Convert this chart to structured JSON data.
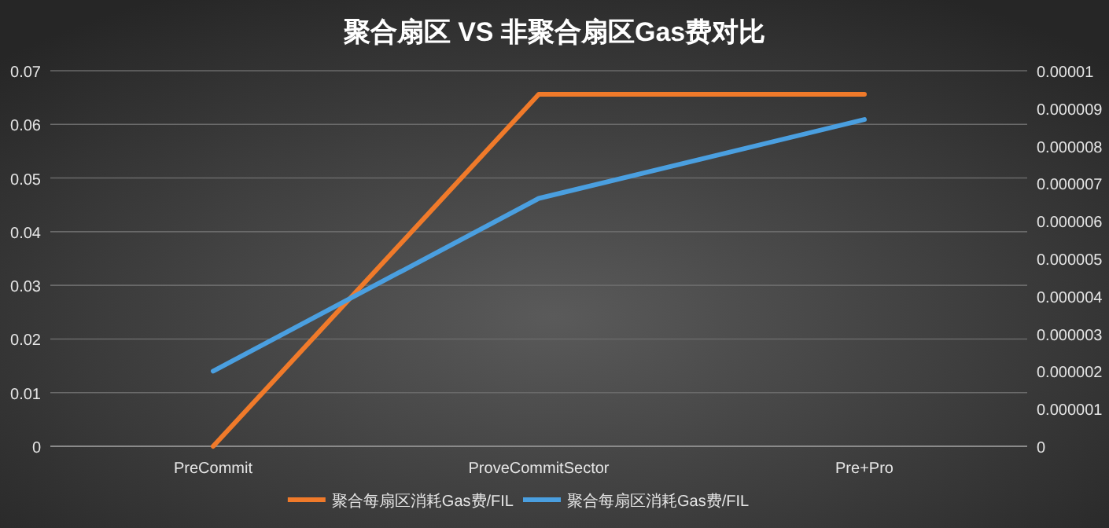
{
  "chart_data": {
    "type": "line",
    "title": "聚合扇区 VS 非聚合扇区Gas费对比",
    "categories": [
      "PreCommit",
      "ProveCommitSector",
      "Pre+Pro"
    ],
    "series": [
      {
        "name": "聚合每扇区消耗Gas费/FIL",
        "color": "#f07a2a",
        "values": [
          0,
          0.0656,
          0.0656
        ]
      },
      {
        "name": "聚合每扇区消耗Gas费/FIL",
        "color": "#4a9fe0",
        "values": [
          2e-06,
          6.6e-06,
          8.7e-06
        ],
        "axis": "y2"
      }
    ],
    "ylim": [
      0,
      0.07
    ],
    "yticks": [
      0,
      0.01,
      0.02,
      0.03,
      0.04,
      0.05,
      0.06,
      0.07
    ],
    "y2lim": [
      0,
      1e-05
    ],
    "y2ticks": [
      0,
      {
        "value": 1e-06,
        "label": "0.000001"
      },
      {
        "value": 2e-06,
        "label": "0.000002"
      },
      {
        "value": 3e-06,
        "label": "0.000003"
      },
      {
        "value": 4e-06,
        "label": "0.000004"
      },
      {
        "value": 5e-06,
        "label": "0.000005"
      },
      {
        "value": 6e-06,
        "label": "0.000006"
      },
      {
        "value": 7e-06,
        "label": "0.000007"
      },
      {
        "value": 8e-06,
        "label": "0.000008"
      },
      {
        "value": 9e-06,
        "label": "0.000009"
      },
      {
        "value": 1e-05,
        "label": "0.00001"
      }
    ],
    "grid": "y",
    "legend": "bottom",
    "marker": "none",
    "line_style": "solid"
  }
}
